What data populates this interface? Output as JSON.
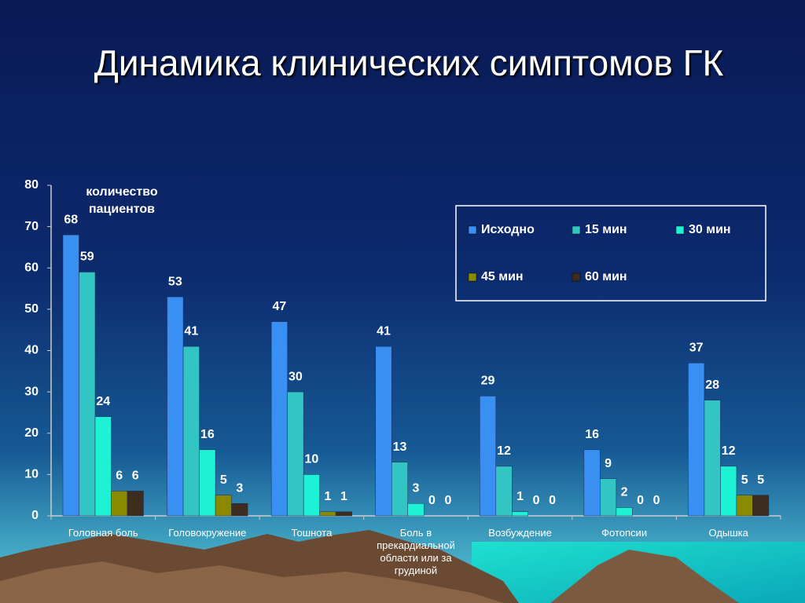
{
  "chart_data": {
    "type": "bar",
    "title": "Динамика клинических симптомов ГК",
    "ylabel": "количество пациентов",
    "categories": [
      "Головная боль",
      "Головокружение",
      "Тошнота",
      "Боль в прекардиальной области или за грудиной",
      "Возбуждение",
      "Фотопсии",
      "Одышка"
    ],
    "series": [
      {
        "name": "Исходно",
        "color": "#3a8ff2",
        "values": [
          68,
          53,
          47,
          41,
          29,
          16,
          37
        ]
      },
      {
        "name": "15 мин",
        "color": "#33c4c4",
        "values": [
          59,
          41,
          30,
          13,
          12,
          9,
          28
        ]
      },
      {
        "name": "30 мин",
        "color": "#1ef2d4",
        "values": [
          24,
          16,
          10,
          3,
          1,
          2,
          12
        ]
      },
      {
        "name": "45 мин",
        "color": "#8a8a00",
        "values": [
          6,
          5,
          1,
          0,
          0,
          0,
          5
        ]
      },
      {
        "name": "60 мин",
        "color": "#3e2c1e",
        "values": [
          6,
          3,
          1,
          0,
          0,
          0,
          5
        ]
      }
    ],
    "ylim": [
      0,
      80
    ],
    "yticks": [
      0,
      10,
      20,
      30,
      40,
      50,
      60,
      70,
      80
    ],
    "grid": false,
    "legend": "top-right"
  }
}
